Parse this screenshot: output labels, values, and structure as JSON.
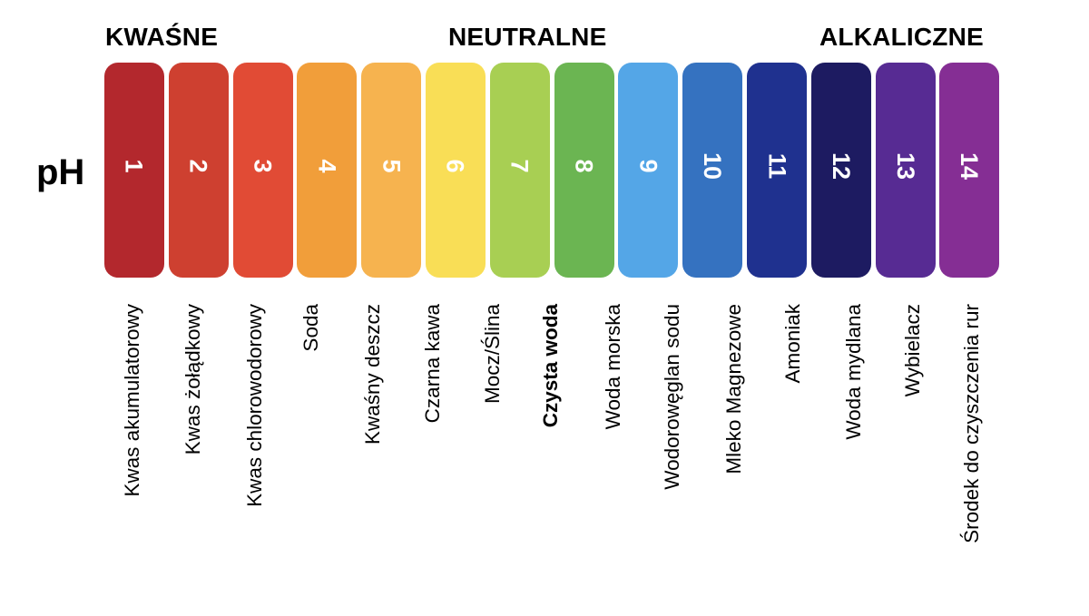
{
  "headings": {
    "acidic": "KWAŚNE",
    "neutral": "NEUTRALNE",
    "alkaline": "ALKALICZNE"
  },
  "axis_label": "pH",
  "scale": [
    {
      "value": "1",
      "label": "Kwas akumulatorowy",
      "color": "#B3282D",
      "bold": false
    },
    {
      "value": "2",
      "label": "Kwas żołądkowy",
      "color": "#CE4030",
      "bold": false
    },
    {
      "value": "3",
      "label": "Kwas chlorowodorowy",
      "color": "#E14B35",
      "bold": false
    },
    {
      "value": "4",
      "label": "Soda",
      "color": "#F19E3A",
      "bold": false
    },
    {
      "value": "5",
      "label": "Kwaśny deszcz",
      "color": "#F6B34F",
      "bold": false
    },
    {
      "value": "6",
      "label": "Czarna kawa",
      "color": "#F9DE56",
      "bold": false
    },
    {
      "value": "7",
      "label": "Mocz/Ślina",
      "color": "#A8CF53",
      "bold": false
    },
    {
      "value": "8",
      "label": "Czysta woda",
      "color": "#6BB552",
      "bold": true
    },
    {
      "value": "9",
      "label": "Woda morska",
      "color": "#54A6E7",
      "bold": false
    },
    {
      "value": "10",
      "label": "Wodorowęglan sodu",
      "color": "#3572C0",
      "bold": false
    },
    {
      "value": "11",
      "label": "Mleko Magnezowe",
      "color": "#1F318F",
      "bold": false
    },
    {
      "value": "12",
      "label": "Amoniak",
      "color": "#1D1B61",
      "bold": false
    },
    {
      "value": "13",
      "label": "Woda mydlana",
      "color": "#572B93",
      "bold": false
    },
    {
      "value": "14",
      "label": "Wybielacz",
      "color": "#852E94",
      "bold": false
    },
    {
      "value": "",
      "label": "Środek do czyszczenia rur",
      "color": "",
      "bold": false
    }
  ],
  "chart_data": {
    "type": "table",
    "title": "pH",
    "group_labels": [
      "KWAŚNE",
      "NEUTRALNE",
      "ALKALICZNE"
    ],
    "categories": [
      "1",
      "2",
      "3",
      "4",
      "5",
      "6",
      "7",
      "8",
      "9",
      "10",
      "11",
      "12",
      "13",
      "14"
    ],
    "labels": [
      "Kwas akumulatorowy",
      "Kwas żołądkowy",
      "Kwas chlorowodorowy",
      "Soda",
      "Kwaśny deszcz",
      "Czarna kawa",
      "Mocz/Ślina",
      "Czysta woda",
      "Woda morska",
      "Wodorowęglan sodu",
      "Mleko Magnezowe",
      "Amoniak",
      "Woda mydlana",
      "Wybielacz",
      "Środek do czyszczenia rur"
    ],
    "colors": [
      "#B3282D",
      "#CE4030",
      "#E14B35",
      "#F19E3A",
      "#F6B34F",
      "#F9DE56",
      "#A8CF53",
      "#6BB552",
      "#54A6E7",
      "#3572C0",
      "#1F318F",
      "#1D1B61",
      "#572B93",
      "#852E94"
    ],
    "highlighted_label": "Czysta woda"
  }
}
